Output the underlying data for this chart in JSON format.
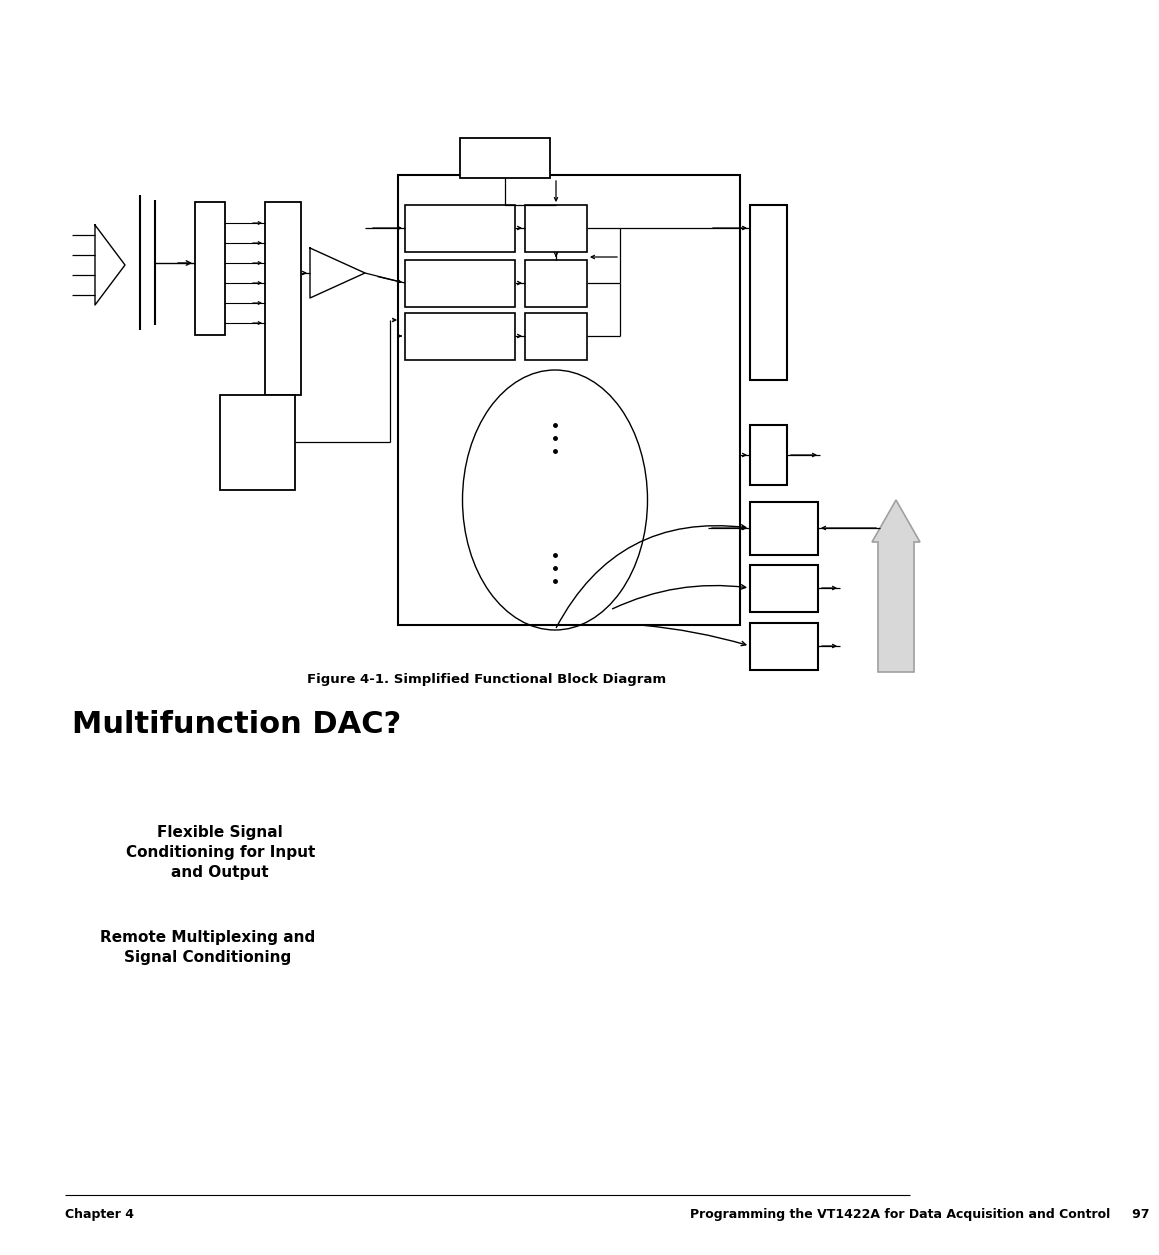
{
  "page_bg": "#ffffff",
  "fig_caption": "Figure 4-1. Simplified Functional Block Diagram",
  "title": "Multifunction DAC?",
  "subtitle1": "Flexible Signal\nConditioning for Input\nand Output",
  "subtitle2": "Remote Multiplexing and\nSignal Conditioning",
  "footer_left": "Chapter 4",
  "footer_right": "Programming the VT1422A for Data Acquisition and Control     97",
  "line_color": "#000000",
  "box_color": "#000000",
  "arrow_color": "#000000",
  "gray_fill": "#d8d8d8",
  "gray_edge": "#a0a0a0"
}
